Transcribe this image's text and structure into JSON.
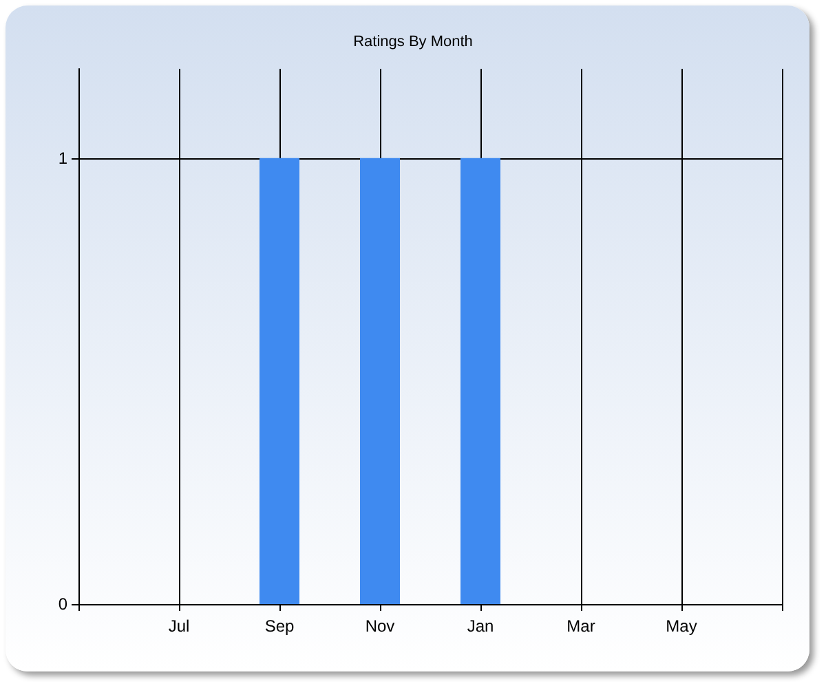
{
  "chart_data": {
    "type": "bar",
    "title": "Ratings By Month",
    "categories": [
      null,
      "Jul",
      "Sep",
      "Nov",
      "Jan",
      "Mar",
      "May",
      null
    ],
    "values": [
      null,
      null,
      1,
      1,
      1,
      null,
      null,
      null
    ],
    "color": "#3f8af0",
    "ylim": [
      0,
      1.2
    ],
    "yticks": [
      0,
      1
    ],
    "grid": true
  }
}
